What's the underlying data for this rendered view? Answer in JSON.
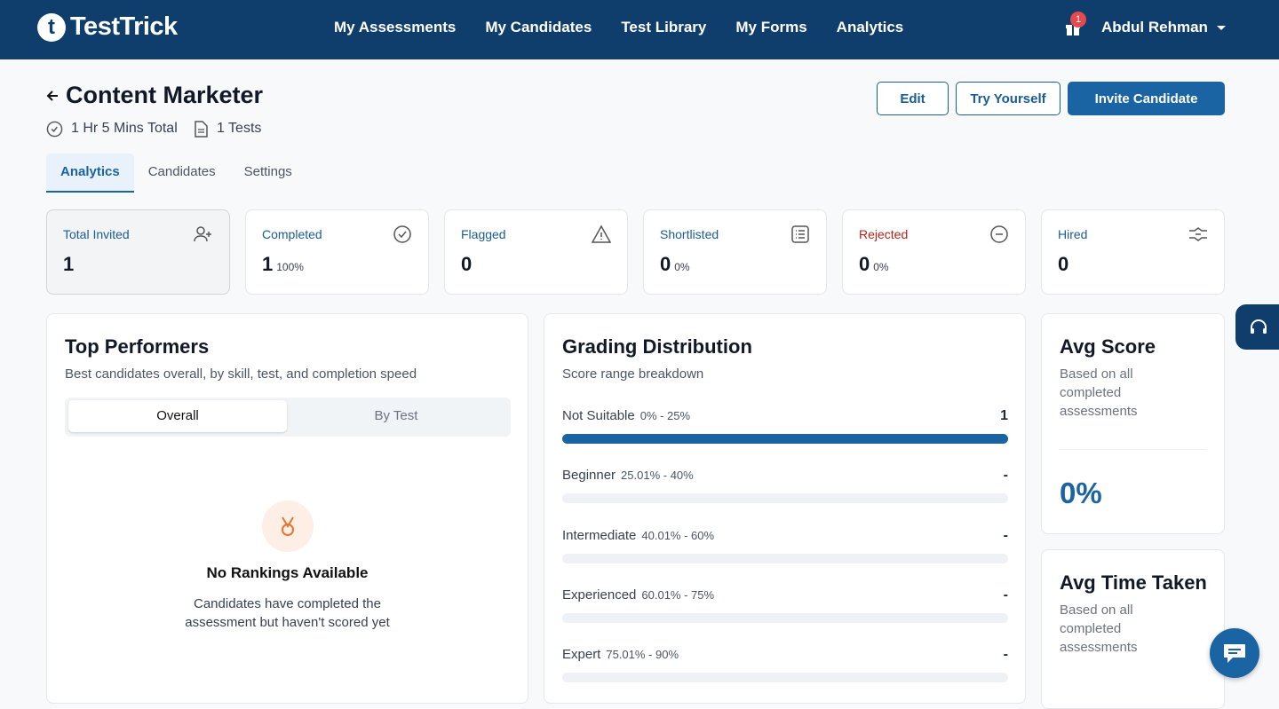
{
  "nav": {
    "logo_icon": "t",
    "logo": "TestTrick",
    "links": [
      "My Assessments",
      "My Candidates",
      "Test Library",
      "My Forms",
      "Analytics"
    ],
    "badge": "1",
    "user": "Abdul Rehman"
  },
  "header": {
    "title": "Content Marketer",
    "duration": "1 Hr 5 Mins Total",
    "tests": "1 Tests",
    "buttons": [
      "Edit",
      "Try Yourself",
      "Invite Candidate"
    ]
  },
  "tabs": [
    "Analytics",
    "Candidates",
    "Settings"
  ],
  "stats": [
    {
      "label": "Total Invited",
      "value": 1
    },
    {
      "label": "Completed",
      "value": 1,
      "percent": "100%"
    },
    {
      "label": "Flagged",
      "value": 0
    },
    {
      "label": "Shortlisted",
      "value": 0,
      "percent": "0%"
    },
    {
      "label": "Rejected",
      "value": 0,
      "percent": "0%"
    },
    {
      "label": "Hired",
      "value": 0
    }
  ],
  "top_performers": {
    "title": "Top Performers",
    "subtitle": "Best candidates overall, by skill, test, and completion speed",
    "toggle": [
      "Overall",
      "By Test"
    ],
    "empty_title": "No Rankings Available",
    "empty_text": "Candidates have completed the assessment but haven't scored yet"
  },
  "grading": {
    "title": "Grading Distribution",
    "subtitle": "Score range breakdown",
    "rows": [
      {
        "label": "Not Suitable",
        "range": "0% - 25%",
        "count": 1
      },
      {
        "label": "Beginner",
        "range": "25.01% - 40%",
        "count": "-"
      },
      {
        "label": "Intermediate",
        "range": "40.01% - 60%",
        "count": "-"
      },
      {
        "label": "Experienced",
        "range": "60.01% - 75%",
        "count": "-"
      },
      {
        "label": "Expert",
        "range": "75.01% - 90%",
        "count": "-"
      }
    ]
  },
  "avg_score": {
    "title": "Avg Score",
    "subtitle": "Based on all completed assessments",
    "value": "0%"
  },
  "avg_time": {
    "title": "Avg Time Taken",
    "subtitle": "Based on all completed assessments"
  }
}
